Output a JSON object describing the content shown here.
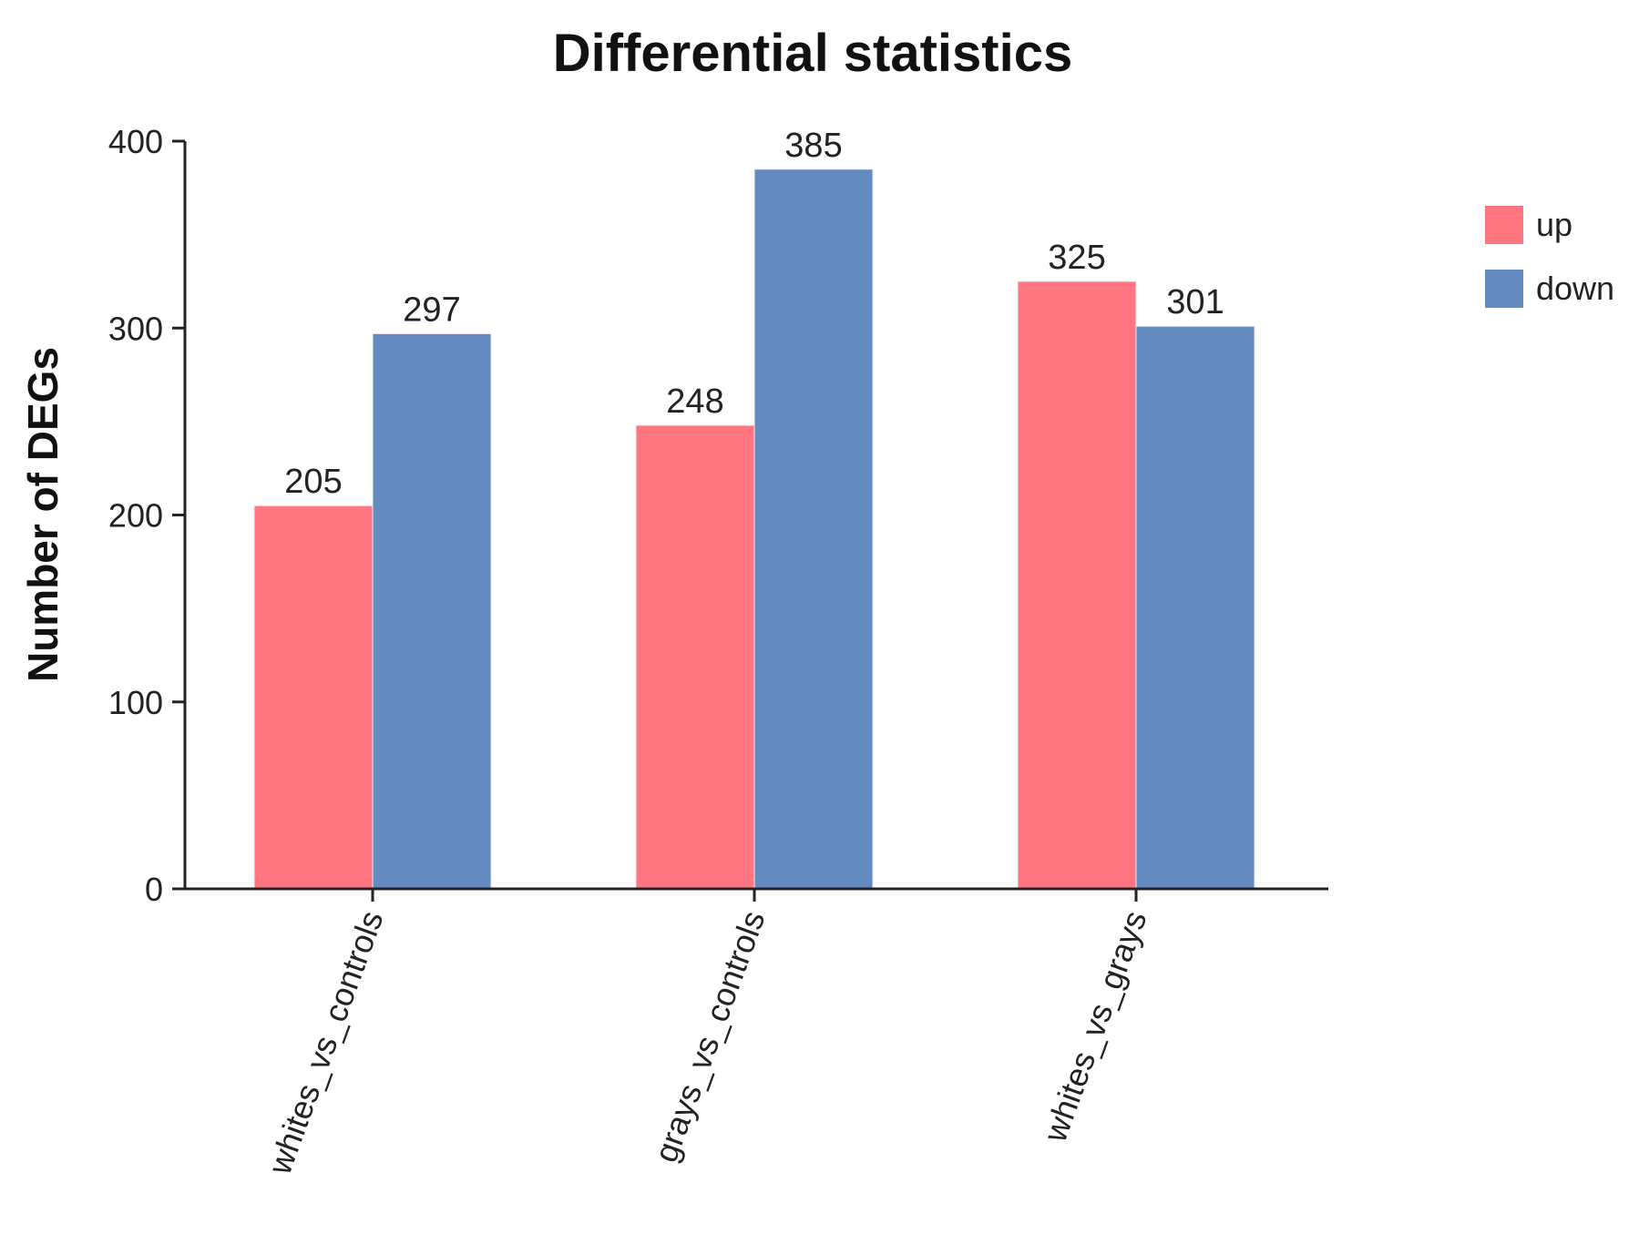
{
  "chart_data": {
    "type": "bar",
    "title": "Differential statistics",
    "xlabel": "",
    "ylabel": "Number of DEGs",
    "categories": [
      "whites_vs_controls",
      "grays_vs_controls",
      "whites_vs_grays"
    ],
    "series": [
      {
        "name": "up",
        "values": [
          205,
          248,
          325
        ],
        "color": "#ff7580"
      },
      {
        "name": "down",
        "values": [
          297,
          385,
          301
        ],
        "color": "#648bc0"
      }
    ],
    "ylim": [
      0,
      400
    ],
    "yticks": [
      0,
      100,
      200,
      300,
      400
    ],
    "data_labels": true,
    "grid": false,
    "legend_position": "top-right"
  }
}
